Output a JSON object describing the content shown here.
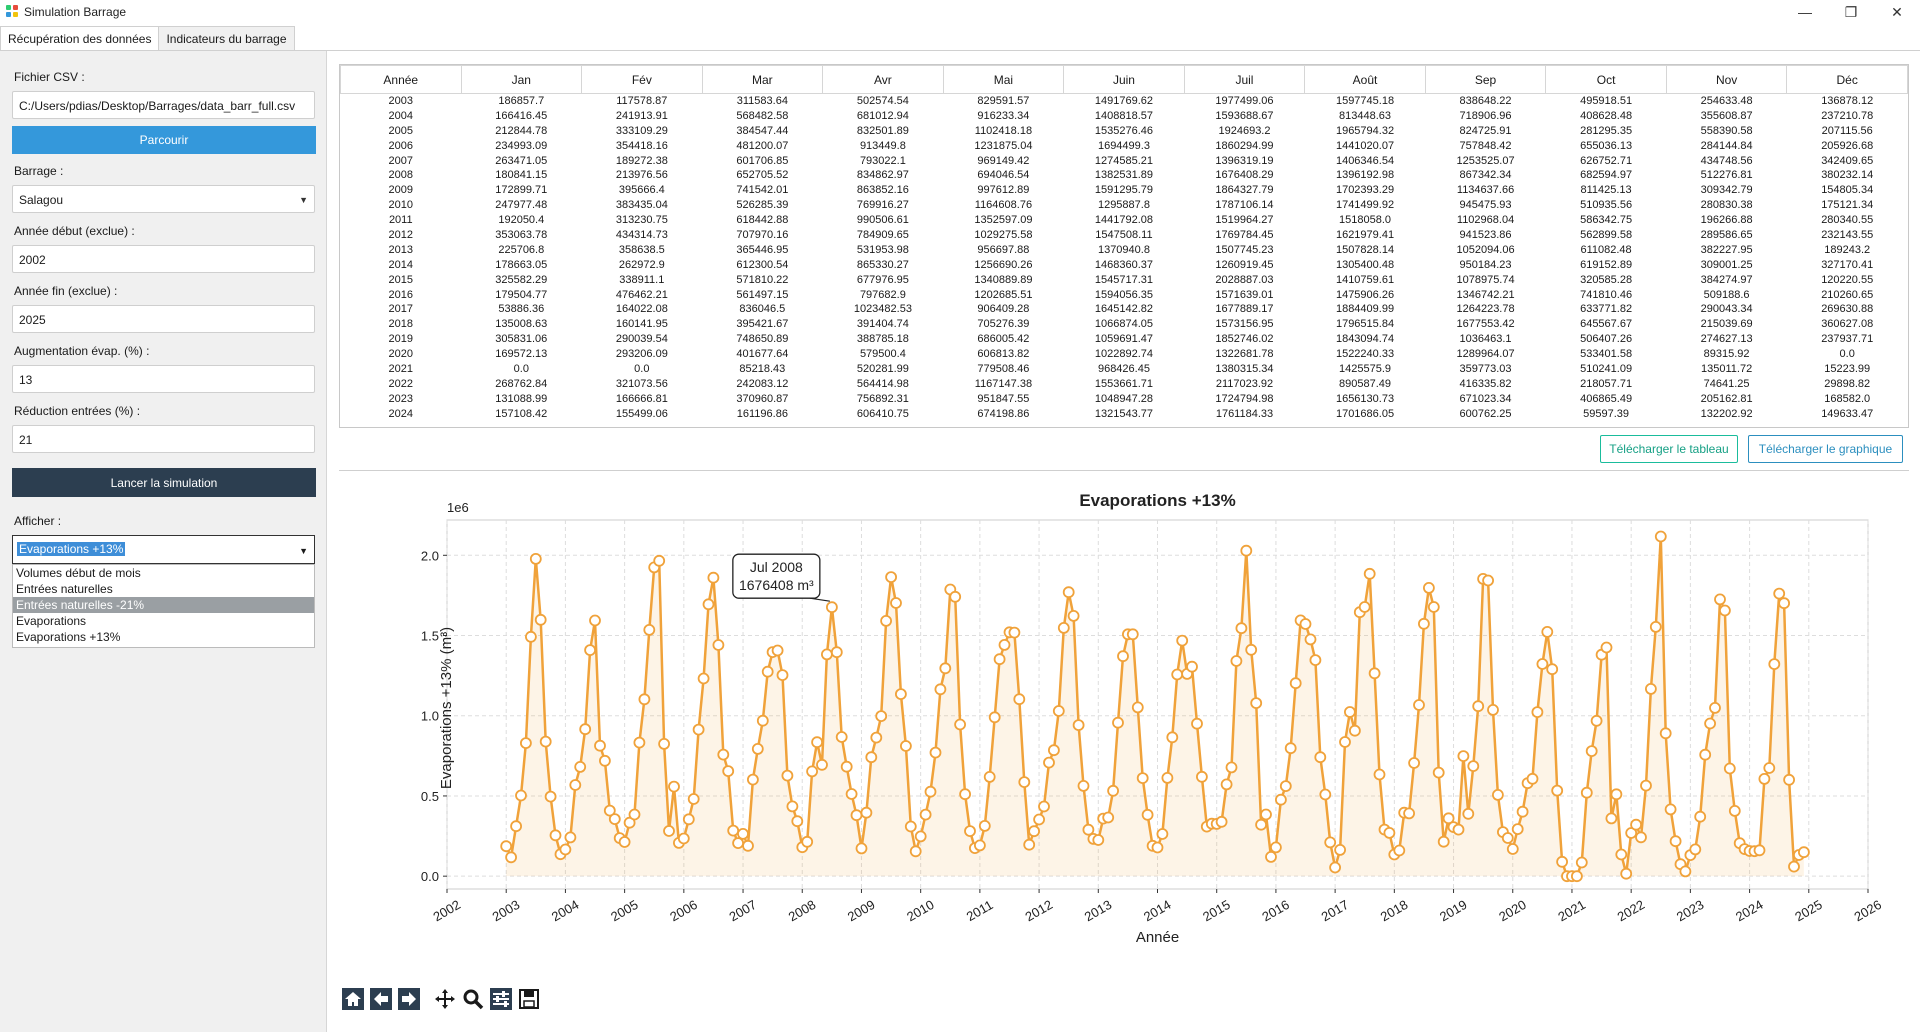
{
  "window": {
    "title": "Simulation Barrage",
    "minimize": "—",
    "restore": "❐",
    "close": "✕"
  },
  "tabs": [
    {
      "label": "Récupération des données"
    },
    {
      "label": "Indicateurs du barrage"
    }
  ],
  "form": {
    "csv_label": "Fichier CSV :",
    "csv_path": "C:/Users/pdias/Desktop/Barrages/data_barr_full.csv",
    "browse_button": "Parcourir",
    "barrage_label": "Barrage :",
    "barrage_value": "Salagou",
    "start_label": "Année début (exclue) :",
    "start_value": "2002",
    "end_label": "Année fin (exclue) :",
    "end_value": "2025",
    "evap_label": "Augmentation évap. (%) :",
    "evap_value": "13",
    "reduc_label": "Réduction entrées (%) :",
    "reduc_value": "21",
    "run_button": "Lancer la simulation",
    "display_label": "Afficher :",
    "display_value": "Evaporations +13%",
    "display_options": [
      "Volumes début de mois",
      "Entrées naturelles",
      "Entrées naturelles -21%",
      "Evaporations",
      "Evaporations +13%"
    ],
    "highlighted_option": 2
  },
  "table": {
    "headers": [
      "Année",
      "Jan",
      "Fév",
      "Mar",
      "Avr",
      "Mai",
      "Juin",
      "Juil",
      "Août",
      "Sep",
      "Oct",
      "Nov",
      "Déc"
    ],
    "rows": [
      [
        "2003",
        "186857.7",
        "117578.87",
        "311583.64",
        "502574.54",
        "829591.57",
        "1491769.62",
        "1977499.06",
        "1597745.18",
        "838648.22",
        "495918.51",
        "254633.48",
        "136878.12"
      ],
      [
        "2004",
        "166416.45",
        "241913.91",
        "568482.58",
        "681012.94",
        "916233.34",
        "1408818.57",
        "1593688.67",
        "813448.63",
        "718906.96",
        "408628.48",
        "355608.87",
        "237210.78"
      ],
      [
        "2005",
        "212844.78",
        "333109.29",
        "384547.44",
        "832501.89",
        "1102418.18",
        "1535276.46",
        "1924693.2",
        "1965794.32",
        "824725.91",
        "281295.35",
        "558390.58",
        "207115.56"
      ],
      [
        "2006",
        "234993.09",
        "354418.16",
        "481200.07",
        "913449.8",
        "1231875.04",
        "1694499.3",
        "1860294.99",
        "1441020.07",
        "757848.42",
        "655036.13",
        "284144.84",
        "205926.68"
      ],
      [
        "2007",
        "263471.05",
        "189272.38",
        "601706.85",
        "793022.1",
        "969149.42",
        "1274585.21",
        "1396319.19",
        "1406346.54",
        "1253525.07",
        "626752.71",
        "434748.56",
        "342409.65"
      ],
      [
        "2008",
        "180841.15",
        "213976.56",
        "652705.52",
        "834862.97",
        "694046.54",
        "1382531.89",
        "1676408.29",
        "1396192.98",
        "867342.34",
        "682594.97",
        "512276.81",
        "380232.14"
      ],
      [
        "2009",
        "172899.71",
        "395666.4",
        "741542.01",
        "863852.16",
        "997612.89",
        "1591295.79",
        "1864327.79",
        "1702393.29",
        "1134637.66",
        "811425.13",
        "309342.79",
        "154805.34"
      ],
      [
        "2010",
        "247977.48",
        "383435.04",
        "526285.39",
        "769916.27",
        "1164608.76",
        "1295887.8",
        "1787106.14",
        "1741499.92",
        "945475.93",
        "510935.56",
        "280830.38",
        "175121.34"
      ],
      [
        "2011",
        "192050.4",
        "313230.75",
        "618442.88",
        "990506.61",
        "1352597.09",
        "1441792.08",
        "1519964.27",
        "1518058.0",
        "1102968.04",
        "586342.75",
        "196266.88",
        "280340.55"
      ],
      [
        "2012",
        "353063.78",
        "434314.73",
        "707970.16",
        "784909.65",
        "1029275.58",
        "1547508.11",
        "1769784.45",
        "1621979.41",
        "941523.86",
        "562899.58",
        "289586.65",
        "232143.55"
      ],
      [
        "2013",
        "225706.8",
        "358638.5",
        "365446.95",
        "531953.98",
        "956697.88",
        "1370940.8",
        "1507745.23",
        "1507828.14",
        "1052094.06",
        "611082.48",
        "382227.95",
        "189243.2"
      ],
      [
        "2014",
        "178663.05",
        "262972.9",
        "612300.54",
        "865330.27",
        "1256690.26",
        "1468360.37",
        "1260919.45",
        "1305400.48",
        "950184.23",
        "619152.89",
        "309001.25",
        "327170.41"
      ],
      [
        "2015",
        "325582.29",
        "338911.1",
        "571810.22",
        "677976.95",
        "1340889.89",
        "1545717.31",
        "2028887.03",
        "1410759.61",
        "1078975.74",
        "320585.28",
        "384274.97",
        "120220.55"
      ],
      [
        "2016",
        "179504.77",
        "476462.21",
        "561497.15",
        "797682.9",
        "1202685.51",
        "1594056.35",
        "1571639.01",
        "1475906.26",
        "1346742.21",
        "741810.46",
        "509188.6",
        "210260.65"
      ],
      [
        "2017",
        "53886.36",
        "164022.08",
        "836046.5",
        "1023482.53",
        "906409.28",
        "1645142.82",
        "1677889.17",
        "1884409.99",
        "1264223.78",
        "633771.82",
        "290043.34",
        "269630.88"
      ],
      [
        "2018",
        "135008.63",
        "160141.95",
        "395421.67",
        "391404.74",
        "705276.39",
        "1066874.05",
        "1573156.95",
        "1796515.84",
        "1677553.42",
        "645567.67",
        "215039.69",
        "360627.08"
      ],
      [
        "2019",
        "305831.06",
        "290039.54",
        "748650.89",
        "388785.18",
        "686005.42",
        "1059691.47",
        "1852746.02",
        "1843094.74",
        "1036463.1",
        "506407.26",
        "274627.13",
        "237937.71"
      ],
      [
        "2020",
        "169572.13",
        "293206.09",
        "401677.64",
        "579500.4",
        "606813.82",
        "1022892.74",
        "1322681.78",
        "1522240.33",
        "1289964.07",
        "533401.58",
        "89315.92",
        "0.0"
      ],
      [
        "2021",
        "0.0",
        "0.0",
        "85218.43",
        "520281.99",
        "779508.46",
        "968426.45",
        "1380315.34",
        "1425575.9",
        "359773.03",
        "510241.09",
        "135011.72",
        "15223.99"
      ],
      [
        "2022",
        "268762.84",
        "321073.56",
        "242083.12",
        "564414.98",
        "1167147.38",
        "1553661.71",
        "2117023.92",
        "890587.49",
        "416335.82",
        "218057.71",
        "74641.25",
        "29898.82"
      ],
      [
        "2023",
        "131088.99",
        "166666.81",
        "370960.87",
        "756892.31",
        "951847.55",
        "1048947.28",
        "1724794.98",
        "1656130.73",
        "671023.34",
        "406865.49",
        "205162.81",
        "168582.0"
      ],
      [
        "2024",
        "157108.42",
        "155499.06",
        "161196.86",
        "606410.75",
        "674198.86",
        "1321543.77",
        "1761184.33",
        "1701686.05",
        "600762.25",
        "59597.39",
        "132202.92",
        "149633.47"
      ]
    ]
  },
  "actions": {
    "download_table": "Télécharger le tableau",
    "download_chart": "Télécharger le graphique"
  },
  "chart_data": {
    "type": "line",
    "title": "Evaporations +13%",
    "xlabel": "Année",
    "ylabel": "Evaporations +13% (m³)",
    "y_offset_label": "1e6",
    "xlim": [
      2002,
      2026
    ],
    "ylim": [
      -0.08,
      2.22
    ],
    "y_scale": 1000000,
    "xticks": [
      2002,
      2003,
      2004,
      2005,
      2006,
      2007,
      2008,
      2009,
      2010,
      2011,
      2012,
      2013,
      2014,
      2015,
      2016,
      2017,
      2018,
      2019,
      2020,
      2021,
      2022,
      2023,
      2024,
      2025,
      2026
    ],
    "yticks": [
      0.0,
      0.5,
      1.0,
      1.5,
      2.0
    ],
    "grid": true,
    "fill_under": true,
    "color": "#f0a23a",
    "series_source": "table.rows",
    "annotation": {
      "line1": "Jul 2008",
      "line2": "1676408 m³",
      "target_year": 2008,
      "target_month": 7
    }
  },
  "toolbar": [
    "home-icon",
    "back-icon",
    "forward-icon",
    "pan-icon",
    "zoom-icon",
    "configure-icon",
    "save-icon"
  ]
}
